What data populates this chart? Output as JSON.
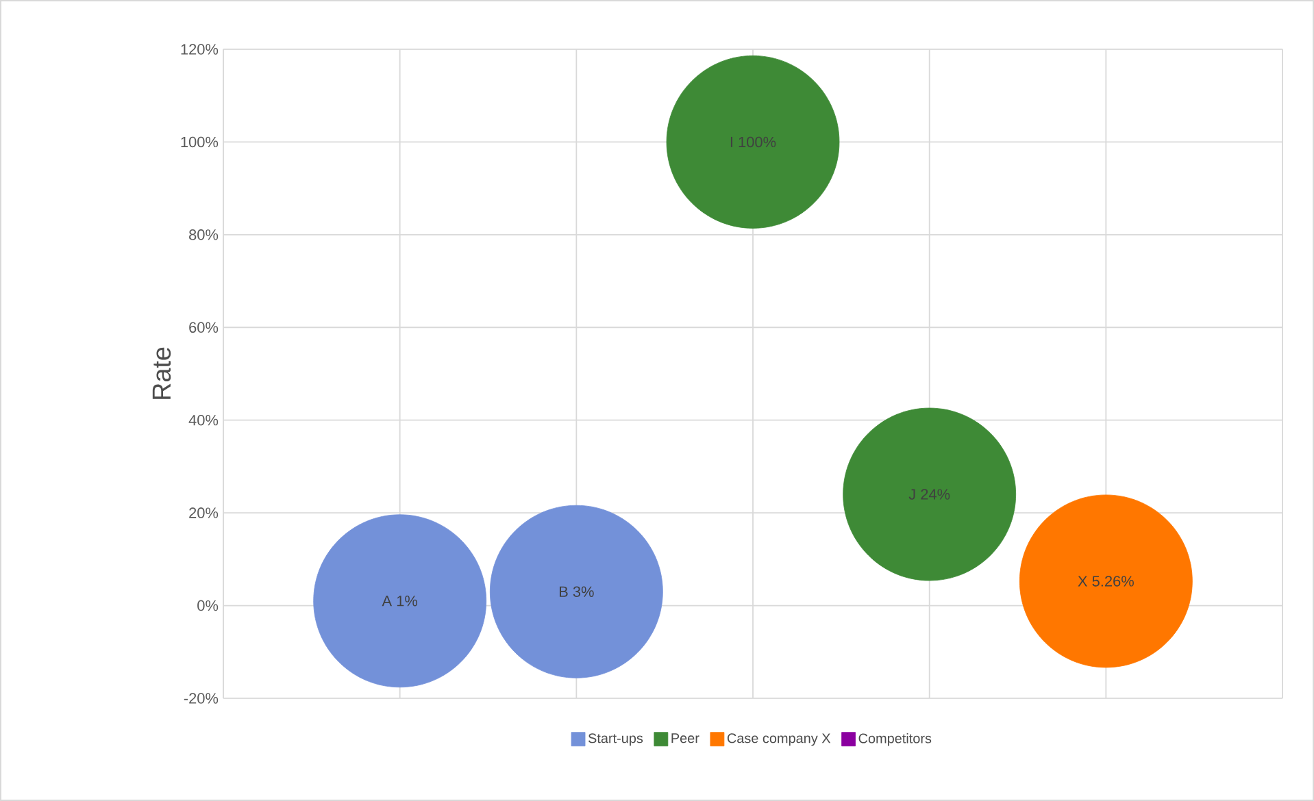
{
  "chart_data": {
    "type": "bubble",
    "ylabel": "Rate",
    "categories": [
      null,
      null,
      null,
      null,
      null
    ],
    "ylim": [
      -20,
      120
    ],
    "yticks": [
      {
        "value": -20,
        "label": "-20%"
      },
      {
        "value": 0,
        "label": "0%"
      },
      {
        "value": 20,
        "label": "20%"
      },
      {
        "value": 40,
        "label": "40%"
      },
      {
        "value": 60,
        "label": "60%"
      },
      {
        "value": 80,
        "label": "80%"
      },
      {
        "value": 100,
        "label": "100%"
      },
      {
        "value": 120,
        "label": "120%"
      }
    ],
    "grid": true,
    "legend": "bottom",
    "series": [
      {
        "name": "Start-ups",
        "color": "#7391d9",
        "values": [
          1,
          3,
          null,
          null,
          null
        ],
        "sizes": [
          1,
          1,
          null,
          null,
          null
        ],
        "value_labels": [
          "A 1%",
          "B 3%",
          null,
          null,
          null
        ]
      },
      {
        "name": "Peer",
        "color": "#3e8a36",
        "values": [
          null,
          null,
          100,
          24,
          null
        ],
        "sizes": [
          null,
          null,
          1,
          1,
          null
        ],
        "value_labels": [
          null,
          null,
          "I 100%",
          "J 24%",
          null
        ]
      },
      {
        "name": "Case company X",
        "color": "#ff7700",
        "values": [
          null,
          null,
          null,
          null,
          5.26
        ],
        "sizes": [
          null,
          null,
          null,
          null,
          1
        ],
        "value_labels": [
          null,
          null,
          null,
          null,
          "X 5.26%"
        ]
      },
      {
        "name": "Competitors",
        "color": "#8b00a0",
        "values": [
          null,
          null,
          null,
          null,
          null
        ]
      }
    ]
  }
}
